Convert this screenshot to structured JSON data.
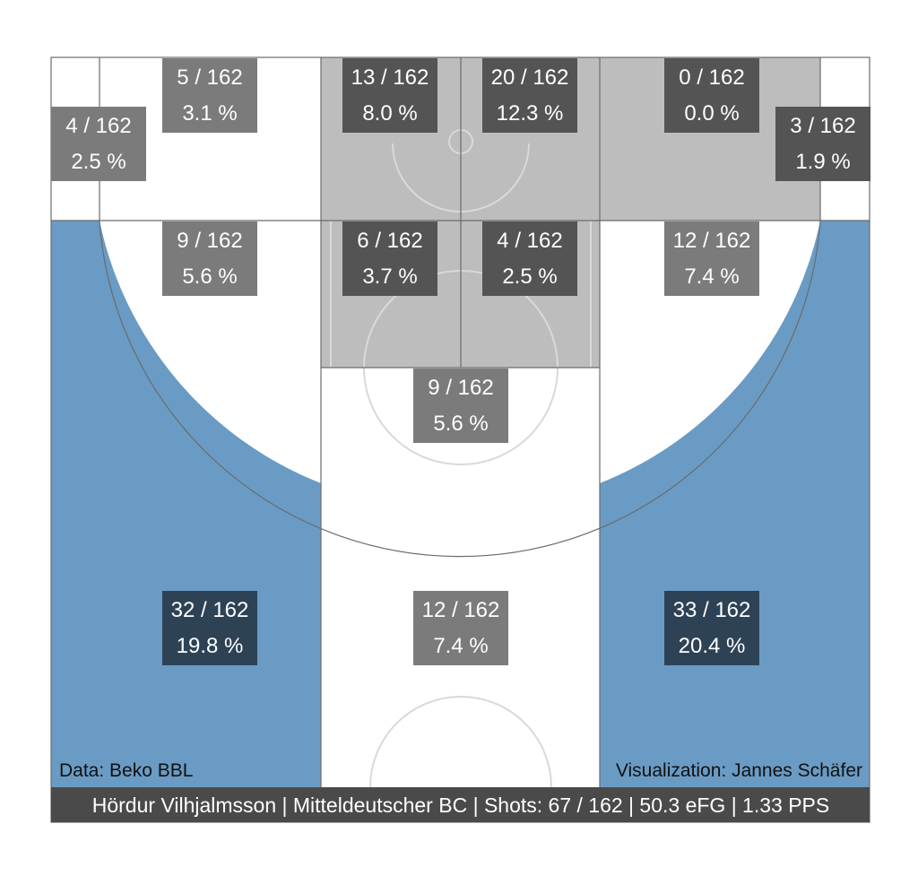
{
  "colors": {
    "background": "#ffffff",
    "paint_zone": "#bdbdbd",
    "corner_three": "#6a9bc4",
    "footer_bar": "#4a4a4a",
    "court_line": "#6b6b6b",
    "court_marking": "#d8d8d8",
    "box_light": "#7b7b7b",
    "box_dark": "#545454",
    "box_navy": "#2e4256",
    "text": "#ffffff"
  },
  "credits": {
    "data_source": "Data: Beko BBL",
    "visualization": "Visualization: Jannes Schäfer"
  },
  "footer": {
    "summary": "Hördur Vilhjalmsson | Mitteldeutscher BC | Shots: 67 / 162 | 50.3 eFG | 1.33 PPS"
  },
  "chart_data": {
    "type": "heatmap",
    "title": "",
    "player": "Hördur Vilhjalmsson",
    "team": "Mitteldeutscher BC",
    "total_shots": 162,
    "player_shots": 67,
    "efg": 50.3,
    "pps": 1.33,
    "zones": [
      {
        "zone": "left-baseline-outer",
        "shots": 4,
        "total": 162,
        "pct": 2.5,
        "label": "4 / 162",
        "pct_label": "2.5 %",
        "shade": "light"
      },
      {
        "zone": "left-baseline-inner",
        "shots": 5,
        "total": 162,
        "pct": 3.1,
        "label": "5 / 162",
        "pct_label": "3.1 %",
        "shade": "light"
      },
      {
        "zone": "paint-baseline-left",
        "shots": 13,
        "total": 162,
        "pct": 8.0,
        "label": "13 / 162",
        "pct_label": "8.0 %",
        "shade": "dark"
      },
      {
        "zone": "paint-baseline-right",
        "shots": 20,
        "total": 162,
        "pct": 12.3,
        "label": "20 / 162",
        "pct_label": "12.3 %",
        "shade": "dark"
      },
      {
        "zone": "right-baseline-inner",
        "shots": 0,
        "total": 162,
        "pct": 0.0,
        "label": "0 / 162",
        "pct_label": "0.0 %",
        "shade": "dark"
      },
      {
        "zone": "right-baseline-outer",
        "shots": 3,
        "total": 162,
        "pct": 1.9,
        "label": "3 / 162",
        "pct_label": "1.9 %",
        "shade": "dark"
      },
      {
        "zone": "left-elbow",
        "shots": 9,
        "total": 162,
        "pct": 5.6,
        "label": "9 / 162",
        "pct_label": "5.6 %",
        "shade": "light"
      },
      {
        "zone": "paint-mid-left",
        "shots": 6,
        "total": 162,
        "pct": 3.7,
        "label": "6 / 162",
        "pct_label": "3.7 %",
        "shade": "dark"
      },
      {
        "zone": "paint-mid-right",
        "shots": 4,
        "total": 162,
        "pct": 2.5,
        "label": "4 / 162",
        "pct_label": "2.5 %",
        "shade": "dark"
      },
      {
        "zone": "right-elbow",
        "shots": 12,
        "total": 162,
        "pct": 7.4,
        "label": "12 / 162",
        "pct_label": "7.4 %",
        "shade": "light"
      },
      {
        "zone": "top-of-key",
        "shots": 9,
        "total": 162,
        "pct": 5.6,
        "label": "9 / 162",
        "pct_label": "5.6 %",
        "shade": "light"
      },
      {
        "zone": "left-wing-three",
        "shots": 32,
        "total": 162,
        "pct": 19.8,
        "label": "32 / 162",
        "pct_label": "19.8 %",
        "shade": "navy"
      },
      {
        "zone": "top-three",
        "shots": 12,
        "total": 162,
        "pct": 7.4,
        "label": "12 / 162",
        "pct_label": "7.4 %",
        "shade": "light"
      },
      {
        "zone": "right-wing-three",
        "shots": 33,
        "total": 162,
        "pct": 20.4,
        "label": "33 / 162",
        "pct_label": "20.4 %",
        "shade": "navy"
      }
    ]
  }
}
